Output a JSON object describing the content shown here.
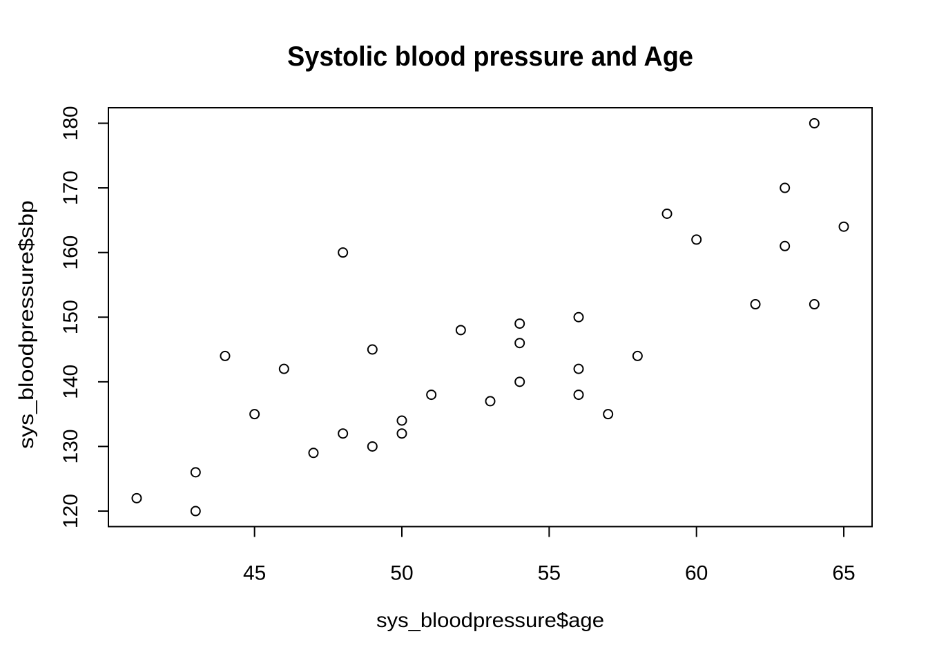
{
  "figure": {
    "background": "#ffffff",
    "foreground": "#000000"
  },
  "chart_data": {
    "type": "scatter",
    "title": "Systolic blood pressure and Age",
    "xlabel": "sys_bloodpressure$age",
    "ylabel": "sys_bloodpressure$sbp",
    "x_ticks": [
      45,
      50,
      55,
      60,
      65
    ],
    "y_ticks": [
      120,
      130,
      140,
      150,
      160,
      170,
      180
    ],
    "xlim": [
      41,
      65
    ],
    "ylim": [
      120,
      180
    ],
    "grid": false,
    "legend": null,
    "marker": "open-circle",
    "marker_color": "#000000",
    "points": [
      {
        "x": 41,
        "y": 122
      },
      {
        "x": 43,
        "y": 120
      },
      {
        "x": 43,
        "y": 126
      },
      {
        "x": 44,
        "y": 144
      },
      {
        "x": 45,
        "y": 135
      },
      {
        "x": 46,
        "y": 142
      },
      {
        "x": 47,
        "y": 129
      },
      {
        "x": 48,
        "y": 132
      },
      {
        "x": 48,
        "y": 160
      },
      {
        "x": 49,
        "y": 130
      },
      {
        "x": 49,
        "y": 145
      },
      {
        "x": 50,
        "y": 132
      },
      {
        "x": 50,
        "y": 134
      },
      {
        "x": 51,
        "y": 138
      },
      {
        "x": 52,
        "y": 148
      },
      {
        "x": 53,
        "y": 137
      },
      {
        "x": 54,
        "y": 140
      },
      {
        "x": 54,
        "y": 146
      },
      {
        "x": 54,
        "y": 149
      },
      {
        "x": 56,
        "y": 138
      },
      {
        "x": 56,
        "y": 142
      },
      {
        "x": 56,
        "y": 150
      },
      {
        "x": 57,
        "y": 135
      },
      {
        "x": 58,
        "y": 144
      },
      {
        "x": 59,
        "y": 166
      },
      {
        "x": 60,
        "y": 162
      },
      {
        "x": 62,
        "y": 152
      },
      {
        "x": 63,
        "y": 161
      },
      {
        "x": 63,
        "y": 170
      },
      {
        "x": 64,
        "y": 152
      },
      {
        "x": 64,
        "y": 180
      },
      {
        "x": 65,
        "y": 164
      }
    ]
  }
}
